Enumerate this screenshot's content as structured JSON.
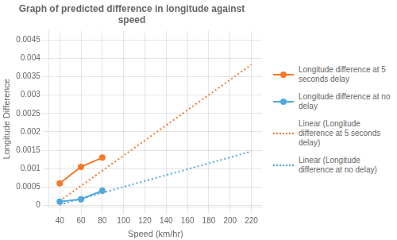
{
  "chart_data": {
    "type": "line",
    "title": "Graph of predicted difference in longitude against\nspeed",
    "xlabel": "Speed (km/hr)",
    "ylabel": "Longitude Difference",
    "series": [
      {
        "name": "Longitude difference at 5\nseconds delay",
        "color": "#F4792B",
        "x": [
          40,
          60,
          80
        ],
        "values": [
          0.0006,
          0.00105,
          0.0013
        ],
        "marker": "circle",
        "line_style": "solid"
      },
      {
        "name": "Longitude difference at no\ndelay",
        "color": "#4FA8DC",
        "x": [
          40,
          60,
          80
        ],
        "values": [
          0.0001,
          0.00017,
          0.0004
        ],
        "marker": "circle",
        "line_style": "solid"
      },
      {
        "name": "Linear (Longitude\ndifference at 5 seconds\ndelay)",
        "color": "#F4792B",
        "x": [
          40,
          220
        ],
        "values": [
          0.00012,
          0.00383
        ],
        "marker": "none",
        "line_style": "dotted"
      },
      {
        "name": "Linear (Longitude\ndifference at no delay)",
        "color": "#4FA8DC",
        "x": [
          40,
          220
        ],
        "values": [
          2e-05,
          0.00147
        ],
        "marker": "none",
        "line_style": "dotted"
      }
    ],
    "xlim": [
      30,
      230
    ],
    "xticks": [
      40,
      60,
      80,
      100,
      120,
      140,
      160,
      180,
      200,
      220
    ],
    "ylim": [
      -5e-05,
      0.00475
    ],
    "yticks": [
      0,
      0.0005,
      0.001,
      0.0015,
      0.002,
      0.0025,
      0.003,
      0.0035,
      0.004,
      0.0045
    ],
    "grid": true,
    "legend": "right"
  }
}
